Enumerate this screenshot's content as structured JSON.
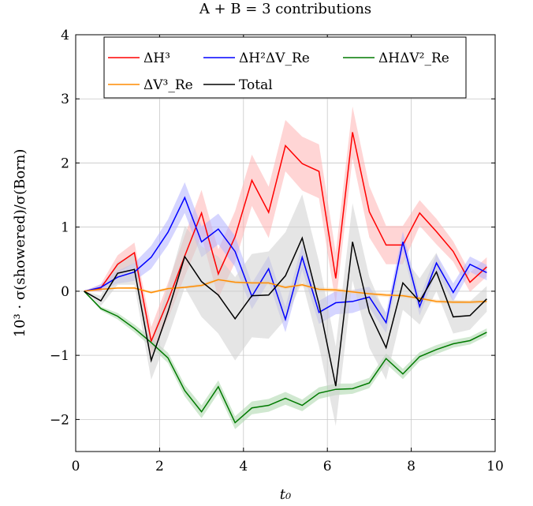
{
  "chart_data": {
    "type": "line",
    "title": "A + B = 3 contributions",
    "xlabel": "t₀",
    "ylabel": "10³ · σ(showered)/σ(Born)",
    "xlim": [
      0,
      10
    ],
    "ylim": [
      -2.5,
      4
    ],
    "xticks": [
      0,
      2,
      4,
      6,
      8,
      10
    ],
    "yticks": [
      -2,
      -1,
      0,
      1,
      2,
      3,
      4
    ],
    "grid": true,
    "legend_position": "top",
    "x": [
      0.2,
      0.6,
      1.0,
      1.4,
      1.8,
      2.2,
      2.6,
      3.0,
      3.4,
      3.8,
      4.2,
      4.6,
      5.0,
      5.4,
      5.8,
      6.2,
      6.6,
      7.0,
      7.4,
      7.8,
      8.2,
      8.6,
      9.0,
      9.4,
      9.8
    ],
    "series": [
      {
        "name": "ΔH³",
        "color": "#ff0000",
        "band_color": "#ffb3b3",
        "values": [
          0.0,
          0.05,
          0.42,
          0.6,
          -0.78,
          -0.15,
          0.55,
          1.22,
          0.27,
          0.85,
          1.73,
          1.23,
          2.27,
          1.99,
          1.87,
          0.2,
          2.48,
          1.24,
          0.72,
          0.72,
          1.22,
          0.93,
          0.62,
          0.14,
          0.38
        ],
        "error": [
          0.0,
          0.06,
          0.14,
          0.16,
          0.22,
          0.28,
          0.32,
          0.36,
          0.38,
          0.4,
          0.4,
          0.4,
          0.4,
          0.42,
          0.42,
          0.4,
          0.4,
          0.4,
          0.3,
          0.3,
          0.2,
          0.2,
          0.16,
          0.15,
          0.15
        ]
      },
      {
        "name": "ΔH²ΔV_Re",
        "color": "#0000ff",
        "band_color": "#b3b3ff",
        "values": [
          0.0,
          0.06,
          0.22,
          0.3,
          0.53,
          0.92,
          1.46,
          0.77,
          0.97,
          0.62,
          -0.08,
          0.35,
          -0.44,
          0.53,
          -0.33,
          -0.18,
          -0.16,
          -0.09,
          -0.49,
          0.77,
          -0.24,
          0.44,
          -0.02,
          0.42,
          0.29
        ],
        "error": [
          0.0,
          0.05,
          0.1,
          0.14,
          0.18,
          0.2,
          0.24,
          0.24,
          0.24,
          0.24,
          0.2,
          0.2,
          0.2,
          0.2,
          0.18,
          0.18,
          0.18,
          0.16,
          0.16,
          0.16,
          0.14,
          0.14,
          0.14,
          0.12,
          0.12
        ]
      },
      {
        "name": "ΔHΔV²_Re",
        "color": "#007a00",
        "band_color": "#aad6aa",
        "values": [
          0.0,
          -0.27,
          -0.39,
          -0.58,
          -0.8,
          -1.04,
          -1.55,
          -1.88,
          -1.49,
          -2.05,
          -1.82,
          -1.78,
          -1.67,
          -1.78,
          -1.59,
          -1.53,
          -1.52,
          -1.43,
          -1.05,
          -1.29,
          -1.02,
          -0.91,
          -0.82,
          -0.77,
          -0.64
        ],
        "error": [
          0.0,
          0.03,
          0.05,
          0.06,
          0.07,
          0.08,
          0.09,
          0.1,
          0.1,
          0.1,
          0.1,
          0.1,
          0.1,
          0.09,
          0.09,
          0.09,
          0.08,
          0.08,
          0.08,
          0.08,
          0.07,
          0.07,
          0.06,
          0.06,
          0.06
        ]
      },
      {
        "name": "ΔV³_Re",
        "color": "#ff8c00",
        "band_color": "#ffd9a8",
        "values": [
          0.0,
          0.03,
          0.05,
          0.05,
          -0.02,
          0.04,
          0.06,
          0.09,
          0.18,
          0.14,
          0.13,
          0.13,
          0.06,
          0.1,
          0.03,
          0.02,
          -0.01,
          -0.04,
          -0.06,
          -0.07,
          -0.11,
          -0.16,
          -0.17,
          -0.17,
          -0.16
        ],
        "error": [
          0.0,
          0.01,
          0.01,
          0.02,
          0.02,
          0.02,
          0.02,
          0.03,
          0.03,
          0.03,
          0.03,
          0.03,
          0.03,
          0.03,
          0.03,
          0.03,
          0.03,
          0.03,
          0.03,
          0.03,
          0.03,
          0.03,
          0.03,
          0.03,
          0.03
        ]
      },
      {
        "name": "Total",
        "color": "#000000",
        "band_color": "#d0d0d0",
        "values": [
          0.0,
          -0.15,
          0.28,
          0.34,
          -1.08,
          -0.32,
          0.54,
          0.15,
          -0.06,
          -0.43,
          -0.07,
          -0.06,
          0.24,
          0.83,
          -0.2,
          -1.48,
          0.77,
          -0.33,
          -0.88,
          0.13,
          -0.16,
          0.3,
          -0.4,
          -0.38,
          -0.12
        ],
        "error": [
          0.0,
          0.08,
          0.18,
          0.24,
          0.3,
          0.4,
          0.48,
          0.55,
          0.6,
          0.65,
          0.65,
          0.68,
          0.68,
          0.68,
          0.66,
          0.62,
          0.6,
          0.55,
          0.5,
          0.42,
          0.36,
          0.3,
          0.26,
          0.22,
          0.2
        ]
      }
    ]
  }
}
